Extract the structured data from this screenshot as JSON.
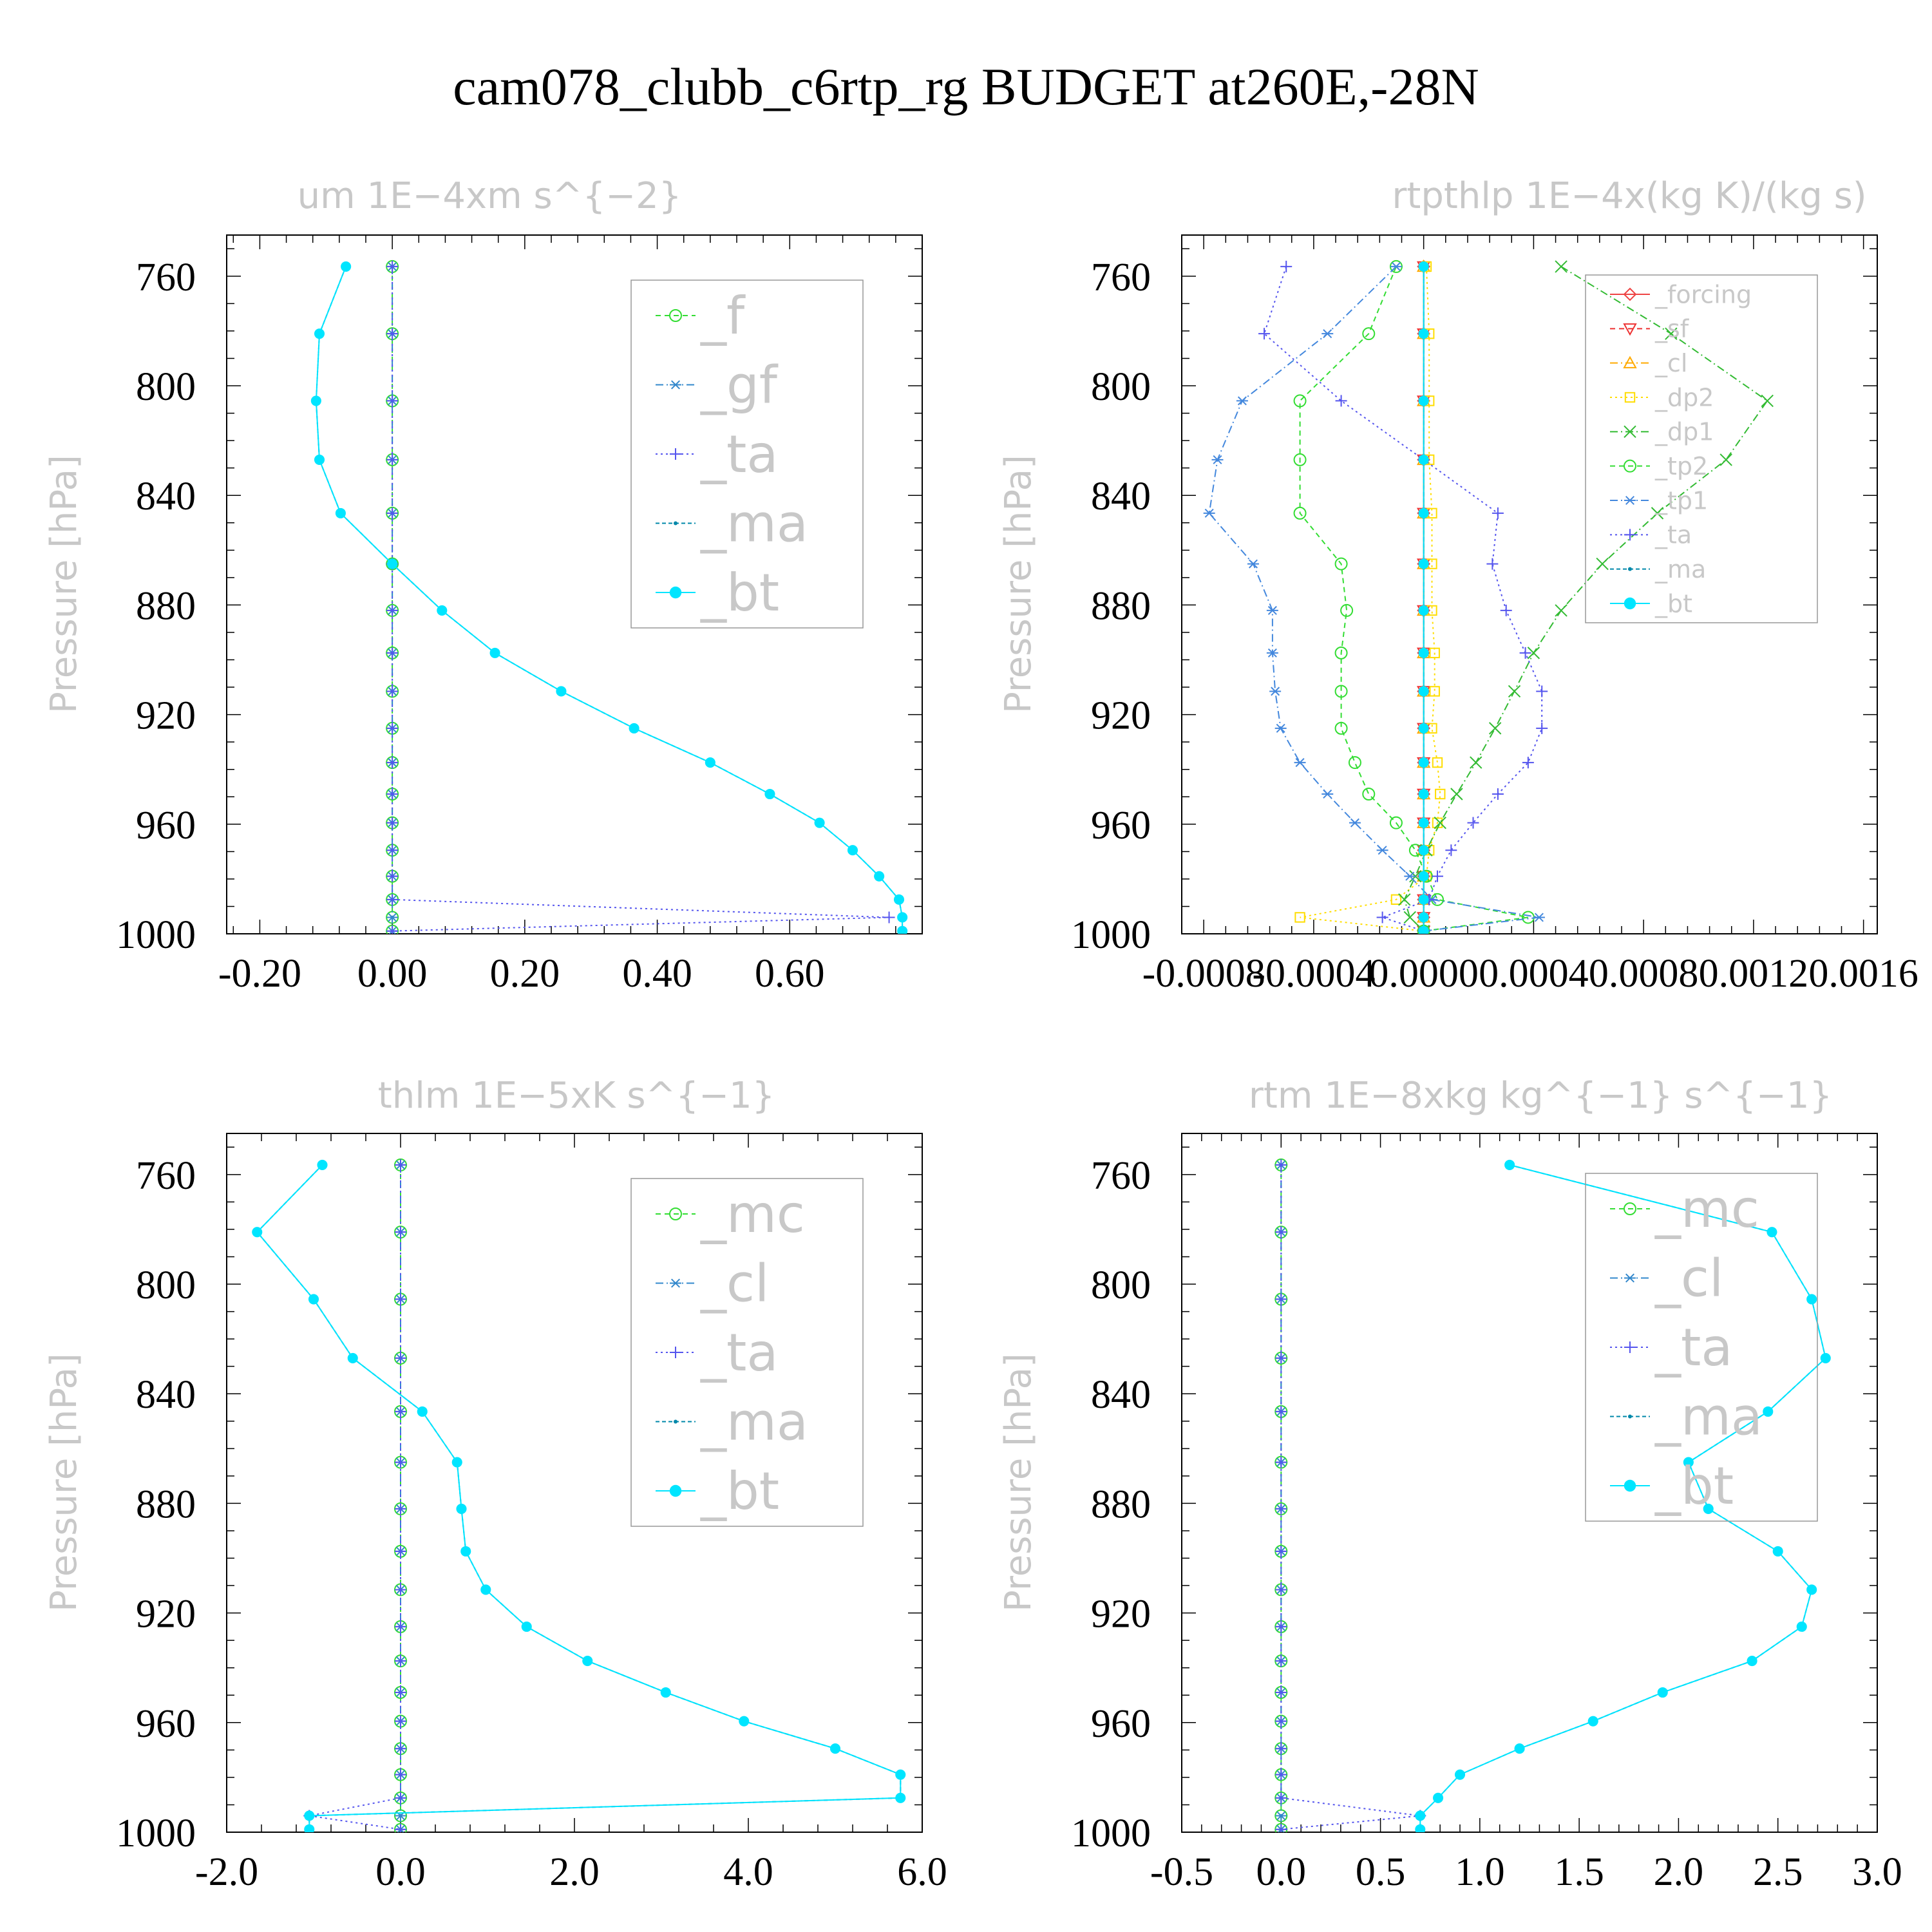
{
  "title": "cam078_clubb_c6rtp_rg  BUDGET at260E,-28N",
  "chart_data": [
    {
      "type": "line",
      "title": "um   1E−4xm s^{−2}",
      "ylabel": "Pressure [hPa]",
      "xlim": [
        -0.25,
        0.8
      ],
      "ylim": [
        1000,
        745
      ],
      "xticks": [
        -0.2,
        0.0,
        0.2,
        0.4,
        0.6
      ],
      "xtick_labels": [
        "-0.20",
        "0.00",
        "0.20",
        "0.40",
        "0.60"
      ],
      "yticks": [
        760,
        800,
        840,
        880,
        920,
        960,
        1000
      ],
      "ytick_labels": [
        "760",
        "800",
        "840",
        "880",
        "920",
        "960",
        "1000"
      ],
      "legend_position": "top-right",
      "levels": [
        756.5,
        781.0,
        805.5,
        827.0,
        846.5,
        865.0,
        882.0,
        897.5,
        911.5,
        925.0,
        937.5,
        949.0,
        959.5,
        969.5,
        979.0,
        987.5,
        994.0,
        999.0
      ],
      "series": [
        {
          "name": "_f",
          "color": "#33dd33",
          "marker": "circle",
          "dash": "8 6",
          "values": [
            0,
            0,
            0,
            0,
            0,
            0,
            0,
            0,
            0,
            0,
            0,
            0,
            0,
            0,
            0,
            0,
            0,
            0
          ]
        },
        {
          "name": "_gf",
          "color": "#3388cc",
          "marker": "asterisk",
          "dash": "12 5 2 5",
          "values": [
            0,
            0,
            0,
            0,
            0,
            0,
            0,
            0,
            0,
            0,
            0,
            0,
            0,
            0,
            0,
            0,
            0,
            0
          ]
        },
        {
          "name": "_ta",
          "color": "#5555ee",
          "marker": "plus",
          "dash": "3 5",
          "values": [
            0,
            0,
            0,
            0,
            0,
            0,
            0,
            0,
            0,
            0,
            0,
            0,
            0,
            0,
            0,
            0,
            0.75,
            0
          ]
        },
        {
          "name": "_ma",
          "color": "#0088aa",
          "marker": "dot",
          "dash": "6 4",
          "values": [
            -0.07,
            -0.11,
            -0.115,
            -0.11,
            -0.078,
            0.0,
            0.075,
            0.155,
            0.255,
            0.365,
            0.48,
            0.57,
            0.645,
            0.695,
            0.735,
            0.765,
            0.77,
            0.77
          ]
        },
        {
          "name": "_bt",
          "color": "#00e5ff",
          "marker": "filled-circle",
          "dash": "none",
          "values": [
            -0.07,
            -0.11,
            -0.115,
            -0.11,
            -0.078,
            0.0,
            0.075,
            0.155,
            0.255,
            0.365,
            0.48,
            0.57,
            0.645,
            0.695,
            0.735,
            0.765,
            0.77,
            0.77
          ]
        }
      ]
    },
    {
      "type": "line",
      "title": "rtpthlp   1E−4x(kg K)/(kg s)",
      "ylabel": "Pressure [hPa]",
      "xlim": [
        -0.00088,
        0.00165
      ],
      "ylim": [
        1000,
        745
      ],
      "xticks": [
        -0.0008,
        -0.0004,
        0.0,
        0.0004,
        0.0008,
        0.0012,
        0.0016
      ],
      "xtick_labels": [
        "-0.0008",
        "-0.0004",
        "0.0000",
        "0.0004",
        "0.0008",
        "0.0012",
        "0.0016"
      ],
      "yticks": [
        760,
        800,
        840,
        880,
        920,
        960,
        1000
      ],
      "ytick_labels": [
        "760",
        "800",
        "840",
        "880",
        "920",
        "960",
        "1000"
      ],
      "legend_position": "top-right",
      "levels": [
        756.5,
        781.0,
        805.5,
        827.0,
        846.5,
        865.0,
        882.0,
        897.5,
        911.5,
        925.0,
        937.5,
        949.0,
        959.5,
        969.5,
        979.0,
        987.5,
        994.0,
        999.0
      ],
      "series": [
        {
          "name": "_forcing",
          "color": "#ee4444",
          "marker": "diamond",
          "dash": "none",
          "values": [
            0,
            0,
            0,
            0,
            0,
            0,
            0,
            0,
            0,
            0,
            0,
            0,
            0,
            0,
            0,
            0,
            0,
            0
          ]
        },
        {
          "name": "_sf",
          "color": "#ee3333",
          "marker": "triangle-down",
          "dash": "8 6",
          "values": [
            0,
            0,
            0,
            0,
            0,
            0,
            0,
            0,
            0,
            0,
            0,
            0,
            0,
            0,
            0,
            0,
            0,
            0
          ]
        },
        {
          "name": "_cl",
          "color": "#ffaa00",
          "marker": "triangle-up",
          "dash": "12 5 2 5",
          "values": [
            0,
            0,
            0,
            0,
            0,
            0,
            0,
            0,
            0,
            0,
            0,
            0,
            0,
            0,
            0,
            0,
            0,
            0
          ]
        },
        {
          "name": "_dp2",
          "color": "#ffdd00",
          "marker": "square",
          "dash": "3 5",
          "values": [
            1e-05,
            2e-05,
            2e-05,
            2e-05,
            3e-05,
            3e-05,
            3e-05,
            4e-05,
            4e-05,
            3e-05,
            5e-05,
            6e-05,
            5e-05,
            2e-05,
            1e-05,
            -0.0001,
            -0.00045,
            0
          ]
        },
        {
          "name": "_dp1",
          "color": "#33bb33",
          "marker": "cross",
          "dash": "12 5 2 5",
          "values": [
            0.0005,
            0.0009,
            0.00125,
            0.0011,
            0.00085,
            0.00065,
            0.0005,
            0.0004,
            0.00033,
            0.00026,
            0.00019,
            0.00012,
            6e-05,
            1e-05,
            -3e-05,
            -7e-05,
            -5e-05,
            0
          ]
        },
        {
          "name": "_tp2",
          "color": "#33dd33",
          "marker": "circle",
          "dash": "8 6",
          "values": [
            -0.0001,
            -0.0002,
            -0.00045,
            -0.00045,
            -0.00045,
            -0.0003,
            -0.00028,
            -0.0003,
            -0.0003,
            -0.0003,
            -0.00025,
            -0.0002,
            -0.0001,
            -3e-05,
            1e-05,
            5e-05,
            0.00038,
            0
          ]
        },
        {
          "name": "_tp1",
          "color": "#4488dd",
          "marker": "asterisk",
          "dash": "12 5 2 5",
          "values": [
            -0.0001,
            -0.00035,
            -0.00066,
            -0.00075,
            -0.00078,
            -0.00062,
            -0.00055,
            -0.00055,
            -0.00054,
            -0.00052,
            -0.00045,
            -0.00035,
            -0.00025,
            -0.00015,
            -5e-05,
            3e-05,
            0.00042,
            0
          ]
        },
        {
          "name": "_ta",
          "color": "#5555ee",
          "marker": "plus",
          "dash": "3 5",
          "values": [
            -0.0005,
            -0.00058,
            -0.0003,
            0.0,
            0.00027,
            0.00025,
            0.0003,
            0.00037,
            0.00043,
            0.00043,
            0.00038,
            0.00027,
            0.00018,
            0.0001,
            5e-05,
            2e-05,
            -0.00015,
            0
          ]
        },
        {
          "name": "_ma",
          "color": "#0088aa",
          "marker": "dot",
          "dash": "6 4",
          "values": [
            0,
            0,
            0,
            0,
            0,
            0,
            0,
            0,
            0,
            0,
            0,
            0,
            0,
            0,
            0,
            0,
            0,
            0
          ]
        },
        {
          "name": "_bt",
          "color": "#00e5ff",
          "marker": "filled-circle",
          "dash": "none",
          "values": [
            0,
            0,
            0,
            0,
            0,
            0,
            0,
            0,
            0,
            0,
            0,
            0,
            0,
            0,
            0,
            0,
            0,
            0
          ]
        }
      ]
    },
    {
      "type": "line",
      "title": "thlm   1E−5xK s^{−1}",
      "ylabel": "Pressure [hPa]",
      "xlim": [
        -2.0,
        6.0
      ],
      "ylim": [
        1000,
        745
      ],
      "xticks": [
        -2.0,
        0.0,
        2.0,
        4.0,
        6.0
      ],
      "xtick_labels": [
        "-2.0",
        "0.0",
        "2.0",
        "4.0",
        "6.0"
      ],
      "yticks": [
        760,
        800,
        840,
        880,
        920,
        960,
        1000
      ],
      "ytick_labels": [
        "760",
        "800",
        "840",
        "880",
        "920",
        "960",
        "1000"
      ],
      "legend_position": "top-right",
      "levels": [
        756.5,
        781.0,
        805.5,
        827.0,
        846.5,
        865.0,
        882.0,
        897.5,
        911.5,
        925.0,
        937.5,
        949.0,
        959.5,
        969.5,
        979.0,
        987.5,
        994.0,
        999.0
      ],
      "series": [
        {
          "name": "_mc",
          "color": "#33dd33",
          "marker": "circle",
          "dash": "8 6",
          "values": [
            0,
            0,
            0,
            0,
            0,
            0,
            0,
            0,
            0,
            0,
            0,
            0,
            0,
            0,
            0,
            0,
            0,
            0
          ]
        },
        {
          "name": "_cl",
          "color": "#3388cc",
          "marker": "asterisk",
          "dash": "12 5 2 5",
          "values": [
            0,
            0,
            0,
            0,
            0,
            0,
            0,
            0,
            0,
            0,
            0,
            0,
            0,
            0,
            0,
            0,
            0,
            0
          ]
        },
        {
          "name": "_ta",
          "color": "#5555ee",
          "marker": "plus",
          "dash": "3 5",
          "values": [
            0,
            0,
            0,
            0,
            0,
            0,
            0,
            0,
            0,
            0,
            0,
            0,
            0,
            0,
            0,
            0,
            -1.05,
            0
          ]
        },
        {
          "name": "_ma",
          "color": "#0088aa",
          "marker": "dot",
          "dash": "6 4",
          "values": [
            -0.9,
            -1.65,
            -1.0,
            -0.55,
            0.25,
            0.65,
            0.7,
            0.75,
            0.98,
            1.45,
            2.15,
            3.05,
            3.95,
            5.0,
            5.75,
            5.75,
            -1.05,
            -1.05
          ]
        },
        {
          "name": "_bt",
          "color": "#00e5ff",
          "marker": "filled-circle",
          "dash": "none",
          "values": [
            -0.9,
            -1.65,
            -1.0,
            -0.55,
            0.25,
            0.65,
            0.7,
            0.75,
            0.98,
            1.45,
            2.15,
            3.05,
            3.95,
            5.0,
            5.75,
            5.75,
            -1.05,
            -1.05
          ]
        }
      ]
    },
    {
      "type": "line",
      "title": "rtm   1E−8xkg kg^{−1} s^{−1}",
      "ylabel": "Pressure [hPa]",
      "xlim": [
        -0.5,
        3.0
      ],
      "ylim": [
        1000,
        745
      ],
      "xticks": [
        -0.5,
        0.0,
        0.5,
        1.0,
        1.5,
        2.0,
        2.5,
        3.0
      ],
      "xtick_labels": [
        "-0.5",
        "0.0",
        "0.5",
        "1.0",
        "1.5",
        "2.0",
        "2.5",
        "3.0"
      ],
      "yticks": [
        760,
        800,
        840,
        880,
        920,
        960,
        1000
      ],
      "ytick_labels": [
        "760",
        "800",
        "840",
        "880",
        "920",
        "960",
        "1000"
      ],
      "legend_position": "top-right",
      "levels": [
        756.5,
        781.0,
        805.5,
        827.0,
        846.5,
        865.0,
        882.0,
        897.5,
        911.5,
        925.0,
        937.5,
        949.0,
        959.5,
        969.5,
        979.0,
        987.5,
        994.0,
        999.0
      ],
      "series": [
        {
          "name": "_mc",
          "color": "#33dd33",
          "marker": "circle",
          "dash": "8 6",
          "values": [
            0,
            0,
            0,
            0,
            0,
            0,
            0,
            0,
            0,
            0,
            0,
            0,
            0,
            0,
            0,
            0,
            0,
            0
          ]
        },
        {
          "name": "_cl",
          "color": "#3388cc",
          "marker": "asterisk",
          "dash": "12 5 2 5",
          "values": [
            0,
            0,
            0,
            0,
            0,
            0,
            0,
            0,
            0,
            0,
            0,
            0,
            0,
            0,
            0,
            0,
            0,
            0
          ]
        },
        {
          "name": "_ta",
          "color": "#5555ee",
          "marker": "plus",
          "dash": "3 5",
          "values": [
            0,
            0,
            0,
            0,
            0,
            0,
            0,
            0,
            0,
            0,
            0,
            0,
            0,
            0,
            0,
            0,
            0.7,
            0
          ]
        },
        {
          "name": "_ma",
          "color": "#0088aa",
          "marker": "dot",
          "dash": "6 4",
          "values": [
            1.15,
            2.47,
            2.67,
            2.74,
            2.45,
            2.05,
            2.15,
            2.5,
            2.67,
            2.62,
            2.37,
            1.92,
            1.57,
            1.2,
            0.9,
            0.79,
            0.7,
            0.7
          ]
        },
        {
          "name": "_bt",
          "color": "#00e5ff",
          "marker": "filled-circle",
          "dash": "none",
          "values": [
            1.15,
            2.47,
            2.67,
            2.74,
            2.45,
            2.05,
            2.15,
            2.5,
            2.67,
            2.62,
            2.37,
            1.92,
            1.57,
            1.2,
            0.9,
            0.79,
            0.7,
            0.7
          ]
        }
      ]
    }
  ]
}
